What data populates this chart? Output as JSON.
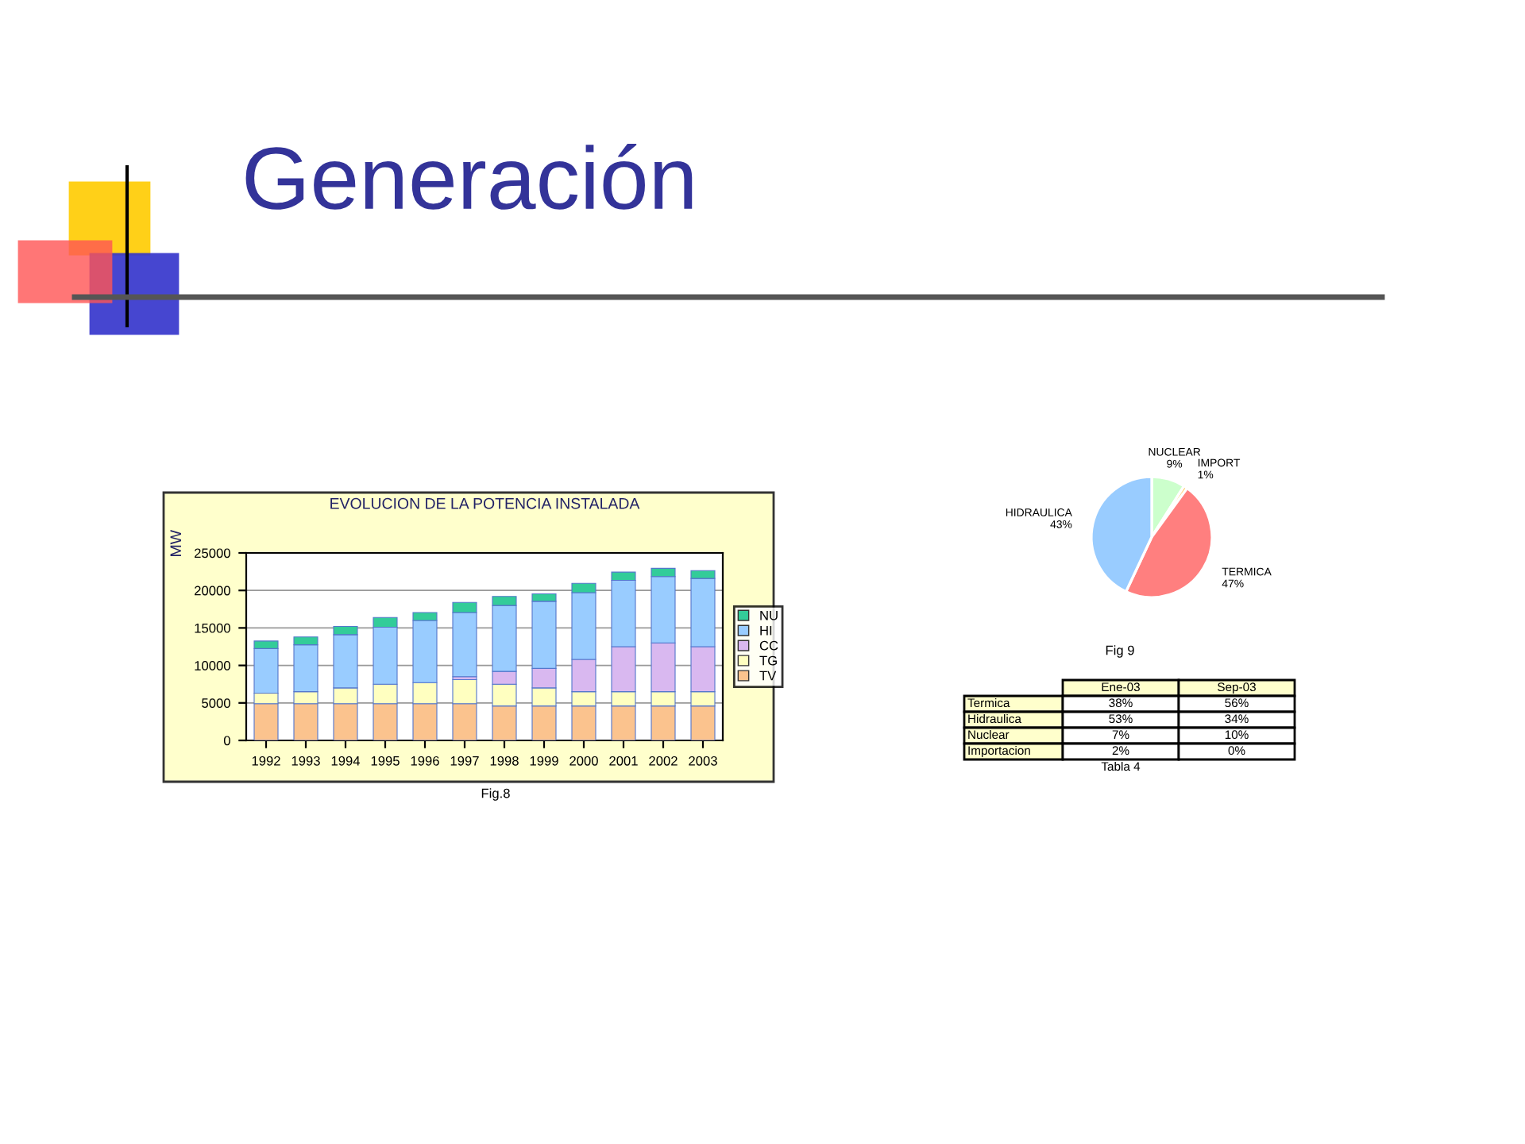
{
  "chart_data": [
    {
      "type": "other",
      "title": "Generación"
    },
    {
      "type": "bar",
      "title": "EVOLUCION DE LA POTENCIA INSTALADA",
      "ylabel": "MW",
      "stacked": true,
      "categories": [
        "1992",
        "1993",
        "1994",
        "1995",
        "1996",
        "1997",
        "1998",
        "1999",
        "2000",
        "2001",
        "2002",
        "2003"
      ],
      "series": [
        {
          "name": "TV",
          "color": "#fbc38e",
          "values": [
            4900,
            4900,
            4900,
            4900,
            4900,
            4900,
            4600,
            4600,
            4600,
            4600,
            4600,
            4600
          ]
        },
        {
          "name": "TG",
          "color": "#ffffc0",
          "values": [
            1400,
            1600,
            2100,
            2600,
            2800,
            3200,
            2900,
            2400,
            1900,
            1900,
            1900,
            1900
          ]
        },
        {
          "name": "CC",
          "color": "#d9b8f0",
          "values": [
            null,
            null,
            null,
            null,
            null,
            400,
            1700,
            2600,
            4300,
            6000,
            6500,
            6000
          ]
        },
        {
          "name": "HI",
          "color": "#99ccff",
          "values": [
            5950,
            6250,
            7100,
            7600,
            8300,
            8550,
            8800,
            8950,
            8900,
            8850,
            8850,
            9100
          ]
        },
        {
          "name": "NU",
          "color": "#33cc99",
          "values": [
            1000,
            1050,
            1100,
            1300,
            1050,
            1350,
            1200,
            1000,
            1250,
            1100,
            1100,
            1050
          ]
        }
      ],
      "ylim": [
        0,
        25000
      ],
      "yticks": [
        0,
        5000,
        10000,
        15000,
        20000,
        25000
      ],
      "grid": "y",
      "legend": "right",
      "annotations": [
        "Fig.8"
      ]
    },
    {
      "type": "pie",
      "categories": [
        "NUCLEAR",
        "IMPORT",
        "TERMICA",
        "HIDRAULICA"
      ],
      "values": [
        9,
        1,
        47,
        43
      ],
      "colors": [
        "#ccffcc",
        "#ffcc66",
        "#ff7f7f",
        "#99ccff"
      ],
      "value_labels": [
        "9%",
        "1%",
        "47%",
        "43%"
      ],
      "annotations": [
        "Fig 9"
      ]
    },
    {
      "type": "other",
      "categories": [
        "Ene-03",
        "Sep-03"
      ],
      "y_categories": [
        "Termica",
        "Hidraulica",
        "Nuclear",
        "Importacion"
      ],
      "cell_labels": [
        [
          "38%",
          "56%"
        ],
        [
          "53%",
          "34%"
        ],
        [
          "7%",
          "10%"
        ],
        [
          "2%",
          "0%"
        ]
      ],
      "annotations": [
        "Tabla 4"
      ]
    }
  ]
}
